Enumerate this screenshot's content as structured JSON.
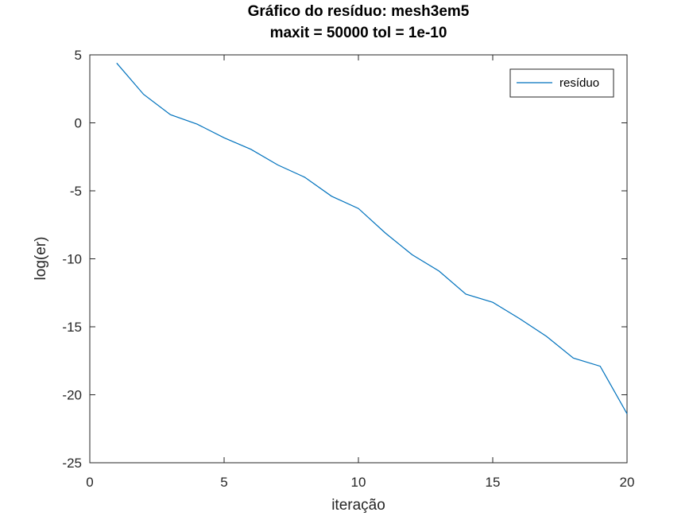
{
  "chart_data": {
    "type": "line",
    "title": [
      "Gráfico do resíduo:  mesh3em5",
      "maxit = 50000 tol = 1e-10"
    ],
    "xlabel": "iteração",
    "ylabel": "log(er)",
    "xlim": [
      0,
      20
    ],
    "ylim": [
      -25,
      5
    ],
    "xticks": [
      0,
      5,
      10,
      15,
      20
    ],
    "yticks": [
      5,
      0,
      -5,
      -10,
      -15,
      -20,
      -25
    ],
    "grid": false,
    "legend_position": "top-right",
    "series": [
      {
        "name": "resíduo",
        "color": "#0072BD",
        "x": [
          1,
          2,
          3,
          4,
          5,
          6,
          7,
          8,
          9,
          10,
          11,
          12,
          13,
          14,
          15,
          16,
          17,
          18,
          19,
          20
        ],
        "y": [
          4.4,
          2.1,
          0.6,
          -0.1,
          -1.1,
          -1.95,
          -3.1,
          -4.0,
          -5.4,
          -6.3,
          -8.1,
          -9.7,
          -10.9,
          -12.6,
          -13.2,
          -14.4,
          -15.7,
          -17.3,
          -17.9,
          -21.4
        ]
      }
    ]
  }
}
